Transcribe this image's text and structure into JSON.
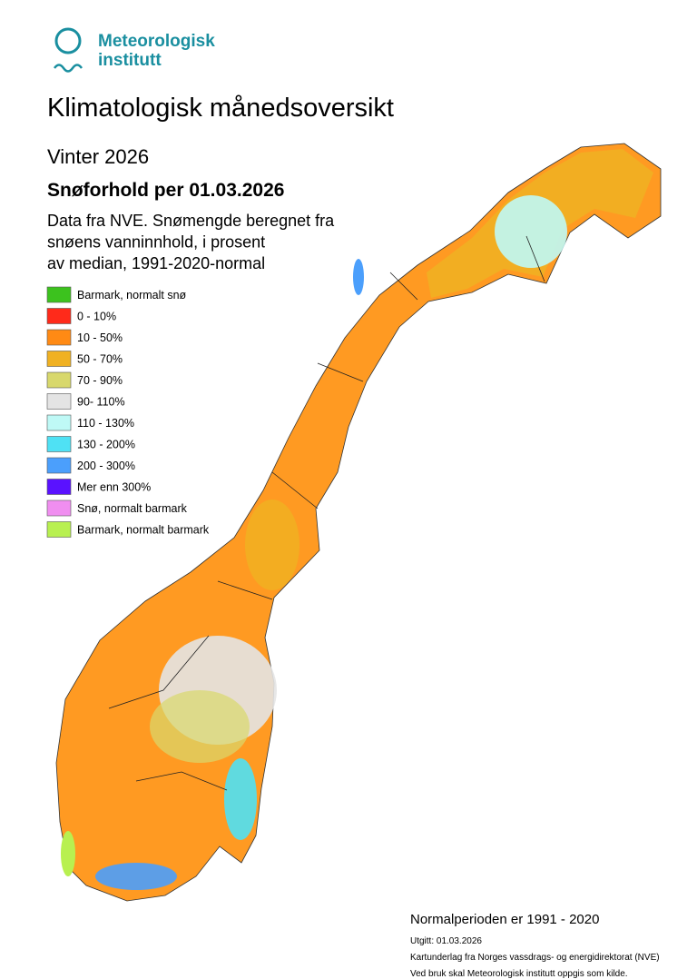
{
  "logo": {
    "lines": [
      "Meteorologisk",
      "institutt"
    ]
  },
  "header": {
    "title": "Klimatologisk månedsoversikt",
    "season": "Vinter 2026",
    "heading": "Snøforhold per 01.03.2026",
    "description": [
      "Data fra NVE. Snømengde beregnet fra",
      "snøens vanninnhold, i prosent",
      "av median, 1991-2020-normal"
    ]
  },
  "legend": [
    {
      "label": "Barmark, normalt snø",
      "color": "#3cc21e"
    },
    {
      "label": "0 - 10%",
      "color": "#ff2a1a"
    },
    {
      "label": "10 - 50%",
      "color": "#ff8a14"
    },
    {
      "label": "50 - 70%",
      "color": "#f0b122"
    },
    {
      "label": "70 - 90%",
      "color": "#d8d86c"
    },
    {
      "label": "90- 110%",
      "color": "#e4e4e4"
    },
    {
      "label": "110 - 130%",
      "color": "#bff9f6"
    },
    {
      "label": "130 - 200%",
      "color": "#4fe1f4"
    },
    {
      "label": "200 - 300%",
      "color": "#4b9ffc"
    },
    {
      "label": "Mer enn 300%",
      "color": "#5a12ff"
    },
    {
      "label": "Snø, normalt barmark",
      "color": "#f08ef0"
    },
    {
      "label": "Barmark, normalt barmark",
      "color": "#b8f050"
    }
  ],
  "footer": {
    "normal_period": "Normalperioden er 1991 - 2020",
    "notes": [
      "Utgitt: 01.03.2026",
      "Kartunderlag fra Norges vassdrags- og energidirektorat (NVE)",
      "Ved bruk skal Meteorologisk institutt oppgis som kilde."
    ]
  }
}
